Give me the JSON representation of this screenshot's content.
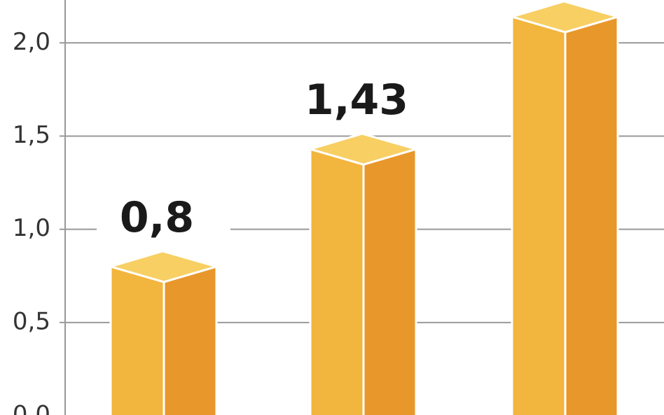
{
  "chart_data": {
    "type": "bar3d",
    "categories": [
      null,
      null,
      null
    ],
    "values": [
      0.8,
      1.43,
      2.14
    ],
    "value_labels": [
      "0,8",
      "1,43",
      null
    ],
    "colors": {
      "front": "#f2b53e",
      "side": "#e8972a",
      "top": "#f7cf63"
    },
    "ylim": [
      0,
      2.23
    ],
    "yticks": [
      {
        "value": 0,
        "label": "0,0"
      },
      {
        "value": 0.5,
        "label": "0,5"
      },
      {
        "value": 1,
        "label": "1,0"
      },
      {
        "value": 1.5,
        "label": "1,5"
      },
      {
        "value": 2,
        "label": "2,0"
      }
    ],
    "grid": true
  }
}
